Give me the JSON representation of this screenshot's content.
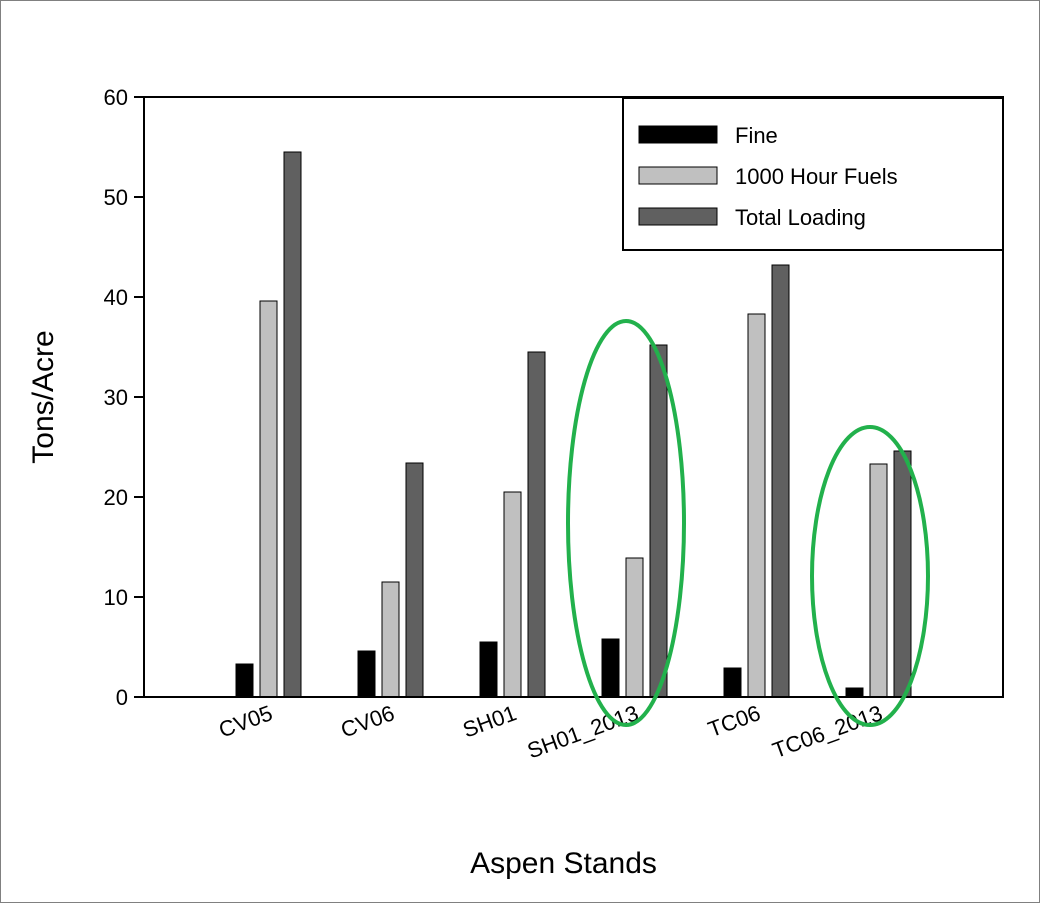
{
  "chart_data": {
    "type": "bar",
    "xlabel": "Aspen Stands",
    "ylabel": "Tons/Acre",
    "ylim": [
      0,
      60
    ],
    "yticks": [
      0,
      10,
      20,
      30,
      40,
      50,
      60
    ],
    "categories": [
      "CV05",
      "CV06",
      "SH01",
      "SH01_2013",
      "TC06",
      "TC06_2013"
    ],
    "series": [
      {
        "name": "Fine",
        "color": "#000000",
        "values": [
          3.3,
          4.6,
          5.5,
          5.8,
          2.9,
          0.9
        ]
      },
      {
        "name": "1000 Hour Fuels",
        "color": "#c0c0c0",
        "values": [
          39.6,
          11.5,
          20.5,
          13.9,
          38.3,
          23.3
        ]
      },
      {
        "name": "Total Loading",
        "color": "#606060",
        "values": [
          54.5,
          23.4,
          34.5,
          35.2,
          43.2,
          24.6
        ]
      }
    ],
    "legend_position": "top-right",
    "grid": false,
    "highlighted_categories": [
      "SH01_2013",
      "TC06_2013"
    ],
    "highlight_color": "#22b14c"
  }
}
